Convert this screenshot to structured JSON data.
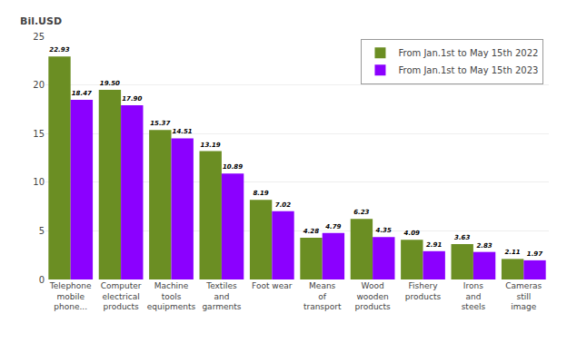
{
  "chart_data": {
    "type": "bar",
    "ylabel": "Bil.USD",
    "categories": [
      "Telephone\nmobile\nphone...",
      "Computer\nelectrical\nproducts",
      "Machine\ntools\nequipments",
      "Textiles\nand\ngarments",
      "Foot wear",
      "Means\nof\ntransport",
      "Wood\nwooden\nproducts",
      "Fishery\nproducts",
      "Irons\nand\nsteels",
      "Cameras\nstill\nimage"
    ],
    "series": [
      {
        "name": "From Jan.1st to May 15th 2022",
        "color": "#6B8E23",
        "values": [
          22.93,
          19.5,
          15.37,
          13.19,
          8.19,
          4.28,
          6.23,
          4.09,
          3.63,
          2.11
        ],
        "value_labels": [
          "22.93",
          "19.50",
          "15.37",
          "13.19",
          "8.19",
          "4.28",
          "6.23",
          "4.09",
          "3.63",
          "2.11"
        ]
      },
      {
        "name": "From Jan.1st to May 15th 2023",
        "color": "#8B00FF",
        "values": [
          18.47,
          17.9,
          14.51,
          10.89,
          7.02,
          4.79,
          4.35,
          2.91,
          2.83,
          1.97
        ],
        "value_labels": [
          "18.47",
          "17.90",
          "14.51",
          "10.89",
          "7.02",
          "4.79",
          "4.35",
          "2.91",
          "2.83",
          "1.97"
        ]
      }
    ],
    "ylim": [
      0,
      25
    ],
    "yticks": [
      0,
      5,
      10,
      15,
      20,
      25
    ],
    "grid": true,
    "legend": "upper right",
    "data_labels": true
  }
}
